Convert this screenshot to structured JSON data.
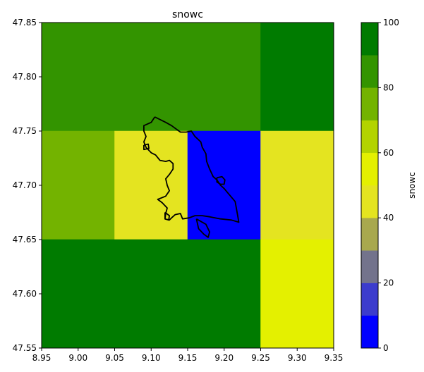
{
  "chart_data": {
    "type": "heatmap",
    "title": "snowc",
    "colorbar_label": "snowc",
    "xlim": [
      8.95,
      9.35
    ],
    "ylim": [
      47.55,
      47.85
    ],
    "x_ticks": [
      "8.95",
      "9.00",
      "9.05",
      "9.10",
      "9.15",
      "9.20",
      "9.25",
      "9.30",
      "9.35"
    ],
    "y_ticks": [
      "47.55",
      "47.60",
      "47.65",
      "47.70",
      "47.75",
      "47.80",
      "47.85"
    ],
    "x_cells": [
      [
        8.95,
        9.05
      ],
      [
        9.05,
        9.15
      ],
      [
        9.15,
        9.25
      ],
      [
        9.25,
        9.35
      ]
    ],
    "y_cells": [
      [
        47.55,
        47.65
      ],
      [
        47.65,
        47.75
      ],
      [
        47.75,
        47.85
      ]
    ],
    "cells": [
      {
        "x0": 8.95,
        "x1": 9.25,
        "y0": 47.75,
        "y1": 47.85,
        "value": 85
      },
      {
        "x0": 9.25,
        "x1": 9.35,
        "y0": 47.75,
        "y1": 47.85,
        "value": 95
      },
      {
        "x0": 8.95,
        "x1": 9.05,
        "y0": 47.65,
        "y1": 47.75,
        "value": 75
      },
      {
        "x0": 9.05,
        "x1": 9.15,
        "y0": 47.65,
        "y1": 47.75,
        "value": 45
      },
      {
        "x0": 9.15,
        "x1": 9.25,
        "y0": 47.65,
        "y1": 47.75,
        "value": 5
      },
      {
        "x0": 9.25,
        "x1": 9.35,
        "y0": 47.65,
        "y1": 47.75,
        "value": 45
      },
      {
        "x0": 8.95,
        "x1": 9.25,
        "y0": 47.55,
        "y1": 47.65,
        "value": 95
      },
      {
        "x0": 9.25,
        "x1": 9.35,
        "y0": 47.55,
        "y1": 47.65,
        "value": 55
      }
    ],
    "colorbar": {
      "range": [
        0,
        100
      ],
      "ticks": [
        "0",
        "20",
        "40",
        "60",
        "80",
        "100"
      ],
      "levels": [
        0,
        10,
        20,
        30,
        40,
        50,
        60,
        70,
        80,
        90,
        100
      ],
      "colors": [
        "#0000ff",
        "#3c3ccd",
        "#73738c",
        "#a8a84e",
        "#e4e420",
        "#e4f000",
        "#b3d300",
        "#73b300",
        "#339400",
        "#007b00"
      ]
    },
    "outline": {
      "color": "#000000",
      "main": [
        [
          9.105,
          47.763
        ],
        [
          9.12,
          47.758
        ],
        [
          9.128,
          47.755
        ],
        [
          9.14,
          47.749
        ],
        [
          9.148,
          47.749
        ],
        [
          9.155,
          47.75
        ],
        [
          9.16,
          47.745
        ],
        [
          9.168,
          47.74
        ],
        [
          9.17,
          47.735
        ],
        [
          9.175,
          47.729
        ],
        [
          9.176,
          47.722
        ],
        [
          9.18,
          47.715
        ],
        [
          9.185,
          47.708
        ],
        [
          9.19,
          47.705
        ],
        [
          9.195,
          47.7
        ],
        [
          9.2,
          47.697
        ],
        [
          9.205,
          47.693
        ],
        [
          9.21,
          47.689
        ],
        [
          9.215,
          47.685
        ],
        [
          9.217,
          47.678
        ],
        [
          9.22,
          47.666
        ],
        [
          9.21,
          47.668
        ],
        [
          9.195,
          47.669
        ],
        [
          9.18,
          47.671
        ],
        [
          9.17,
          47.672
        ],
        [
          9.16,
          47.672
        ],
        [
          9.152,
          47.67
        ],
        [
          9.143,
          47.669
        ],
        [
          9.14,
          47.674
        ],
        [
          9.133,
          47.673
        ],
        [
          9.128,
          47.67
        ],
        [
          9.125,
          47.668
        ],
        [
          9.119,
          47.669
        ],
        [
          9.12,
          47.674
        ],
        [
          9.122,
          47.679
        ],
        [
          9.115,
          47.684
        ],
        [
          9.109,
          47.687
        ],
        [
          9.12,
          47.69
        ],
        [
          9.125,
          47.695
        ],
        [
          9.122,
          47.7
        ],
        [
          9.12,
          47.706
        ],
        [
          9.125,
          47.71
        ],
        [
          9.13,
          47.715
        ],
        [
          9.13,
          47.72
        ],
        [
          9.125,
          47.723
        ],
        [
          9.12,
          47.722
        ],
        [
          9.112,
          47.723
        ],
        [
          9.106,
          47.728
        ],
        [
          9.1,
          47.73
        ],
        [
          9.093,
          47.735
        ],
        [
          9.09,
          47.74
        ],
        [
          9.093,
          47.745
        ],
        [
          9.09,
          47.75
        ],
        [
          9.09,
          47.755
        ],
        [
          9.1,
          47.758
        ],
        [
          9.105,
          47.763
        ]
      ],
      "loops": [
        [
          [
            9.162,
            47.669
          ],
          [
            9.175,
            47.664
          ],
          [
            9.18,
            47.657
          ],
          [
            9.178,
            47.652
          ],
          [
            9.172,
            47.655
          ],
          [
            9.165,
            47.66
          ],
          [
            9.162,
            47.669
          ]
        ],
        [
          [
            9.19,
            47.707
          ],
          [
            9.197,
            47.708
          ],
          [
            9.201,
            47.705
          ],
          [
            9.2,
            47.701
          ],
          [
            9.195,
            47.701
          ],
          [
            9.19,
            47.703
          ],
          [
            9.19,
            47.707
          ]
        ],
        [
          [
            9.09,
            47.737
          ],
          [
            9.096,
            47.738
          ],
          [
            9.097,
            47.734
          ],
          [
            9.09,
            47.733
          ],
          [
            9.09,
            47.737
          ]
        ],
        [
          [
            9.119,
            47.675
          ],
          [
            9.125,
            47.672
          ],
          [
            9.124,
            47.668
          ],
          [
            9.119,
            47.669
          ],
          [
            9.119,
            47.675
          ]
        ]
      ]
    }
  }
}
